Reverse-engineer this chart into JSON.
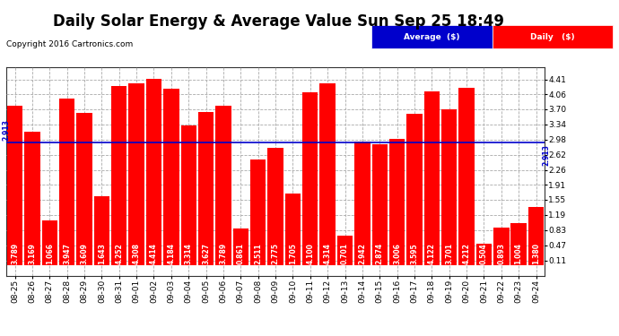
{
  "title": "Daily Solar Energy & Average Value Sun Sep 25 18:49",
  "copyright": "Copyright 2016 Cartronics.com",
  "average_value": 2.913,
  "categories": [
    "08-25",
    "08-26",
    "08-27",
    "08-28",
    "08-29",
    "08-30",
    "08-31",
    "09-01",
    "09-02",
    "09-03",
    "09-04",
    "09-05",
    "09-06",
    "09-07",
    "09-08",
    "09-09",
    "09-10",
    "09-11",
    "09-12",
    "09-13",
    "09-14",
    "09-15",
    "09-16",
    "09-17",
    "09-18",
    "09-19",
    "09-20",
    "09-21",
    "09-22",
    "09-23",
    "09-24"
  ],
  "values": [
    3.789,
    3.169,
    1.066,
    3.947,
    3.609,
    1.643,
    4.252,
    4.308,
    4.414,
    4.184,
    3.314,
    3.627,
    3.789,
    0.861,
    2.511,
    2.775,
    1.705,
    4.1,
    4.314,
    0.701,
    2.942,
    2.874,
    3.006,
    3.595,
    4.122,
    3.701,
    4.212,
    0.504,
    0.893,
    1.004,
    1.38
  ],
  "bar_color": "#ff0000",
  "average_line_color": "#0000cc",
  "grid_color": "#aaaaaa",
  "background_color": "#ffffff",
  "plot_bg_color": "#ffffff",
  "ylim_min": -0.25,
  "ylim_max": 4.7,
  "yticks": [
    0.11,
    0.47,
    0.83,
    1.19,
    1.55,
    1.91,
    2.26,
    2.62,
    2.98,
    3.34,
    3.7,
    4.06,
    4.41
  ],
  "title_fontsize": 12,
  "tick_fontsize": 6.5,
  "value_fontsize": 5.5,
  "legend_avg_color": "#0000cc",
  "legend_daily_color": "#ff0000",
  "legend_text_avg": "Average  ($)",
  "legend_text_daily": "Daily   ($)"
}
